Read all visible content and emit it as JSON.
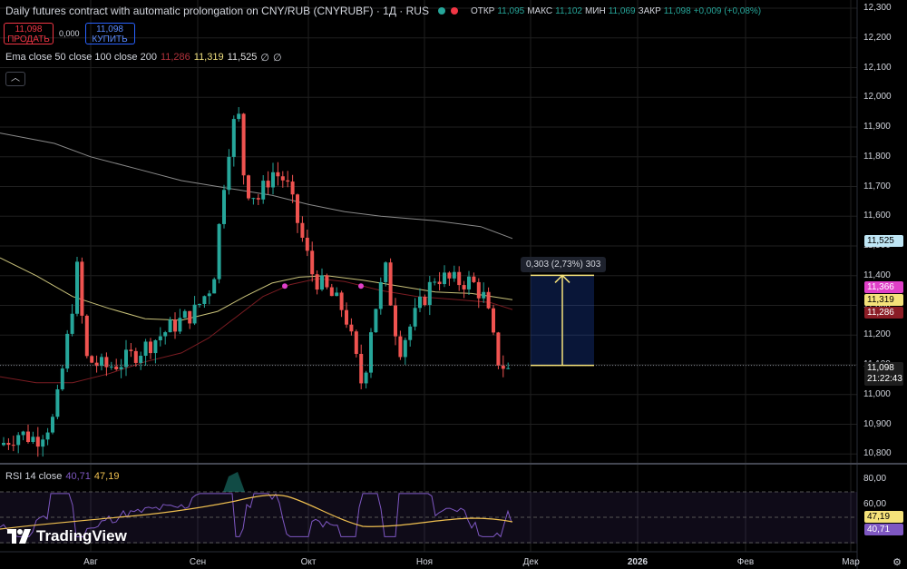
{
  "header": {
    "title": "Daily futures contract with automatic prolongation on CNY/RUB (CNYRUBF) · 1Д · RUS",
    "ohlc": [
      {
        "k": "ОТКР",
        "v": "11,095"
      },
      {
        "k": "МАКС",
        "v": "11,102"
      },
      {
        "k": "МИН",
        "v": "11,069"
      },
      {
        "k": "ЗАКР",
        "v": "11,098"
      },
      {
        "k": "",
        "v": "+0,009 (+0,08%)"
      }
    ]
  },
  "trade": {
    "sell_price": "11,098",
    "sell_label": "ПРОДАТЬ",
    "spread": "0,000",
    "buy_price": "11,098",
    "buy_label": "КУПИТЬ"
  },
  "ema_legend": {
    "label": "Ema close 50 close 100 close 200",
    "v1": "11,286",
    "v2": "11,319",
    "v3": "11,525",
    "v4": "∅",
    "v5": "∅",
    "colors": {
      "v1": "#b2323c",
      "v2": "#f0e080",
      "v3": "#e0e0e0",
      "v4": "#d1d4dc"
    }
  },
  "collapse_icon": "chevron-up-icon",
  "rsi_legend": {
    "label": "RSI 14 close",
    "v1": "40,71",
    "v2": "47,19",
    "c1": "#7e57c2",
    "c2": "#f0c050"
  },
  "price_axis": [
    "12,300",
    "12,200",
    "12,100",
    "12,000",
    "11,900",
    "11,800",
    "11,700",
    "11,600",
    "11,500",
    "11,400",
    "11,300",
    "11,200",
    "11,100",
    "11,000",
    "10,900",
    "10,800"
  ],
  "rsi_axis": [
    "80,00",
    "60,00"
  ],
  "badges": {
    "ema200": "11,525",
    "ema50_pink": "11,366",
    "ema100": "11,319",
    "ema50": "11,286",
    "last_price": "11,098",
    "countdown": "21:22:43",
    "rsi_ma": "47,19",
    "rsi": "40,71"
  },
  "x_axis": [
    "Авг",
    "Сен",
    "Окт",
    "Ноя",
    "Дек",
    "2026",
    "Фев",
    "Мар"
  ],
  "measure_label": "0,303 (2,73%) 303",
  "logo_text": "TradingView",
  "settings_icon": "gear-icon",
  "chart_data": {
    "type": "candlestick",
    "up_color": "#26a69a",
    "down_color": "#ef5350",
    "ema_200": [
      [
        0,
        11880
      ],
      [
        60,
        11845
      ],
      [
        100,
        11800
      ],
      [
        150,
        11760
      ],
      [
        200,
        11720
      ],
      [
        260,
        11690
      ],
      [
        300,
        11670
      ],
      [
        340,
        11640
      ],
      [
        380,
        11615
      ],
      [
        420,
        11600
      ],
      [
        480,
        11585
      ],
      [
        530,
        11565
      ],
      [
        565,
        11525
      ]
    ],
    "ema_100": [
      [
        0,
        11460
      ],
      [
        40,
        11400
      ],
      [
        80,
        11330
      ],
      [
        120,
        11290
      ],
      [
        160,
        11255
      ],
      [
        200,
        11250
      ],
      [
        240,
        11280
      ],
      [
        270,
        11330
      ],
      [
        300,
        11375
      ],
      [
        330,
        11395
      ],
      [
        360,
        11400
      ],
      [
        400,
        11385
      ],
      [
        440,
        11365
      ],
      [
        480,
        11345
      ],
      [
        520,
        11340
      ],
      [
        565,
        11319
      ]
    ],
    "ema_50": [
      [
        0,
        11060
      ],
      [
        40,
        11040
      ],
      [
        80,
        11040
      ],
      [
        120,
        11070
      ],
      [
        160,
        11110
      ],
      [
        200,
        11140
      ],
      [
        230,
        11190
      ],
      [
        260,
        11260
      ],
      [
        290,
        11330
      ],
      [
        320,
        11370
      ],
      [
        350,
        11390
      ],
      [
        380,
        11380
      ],
      [
        420,
        11350
      ],
      [
        460,
        11330
      ],
      [
        500,
        11320
      ],
      [
        540,
        11310
      ],
      [
        565,
        11286
      ]
    ],
    "measure": {
      "from": 11098,
      "to": 11401
    }
  }
}
